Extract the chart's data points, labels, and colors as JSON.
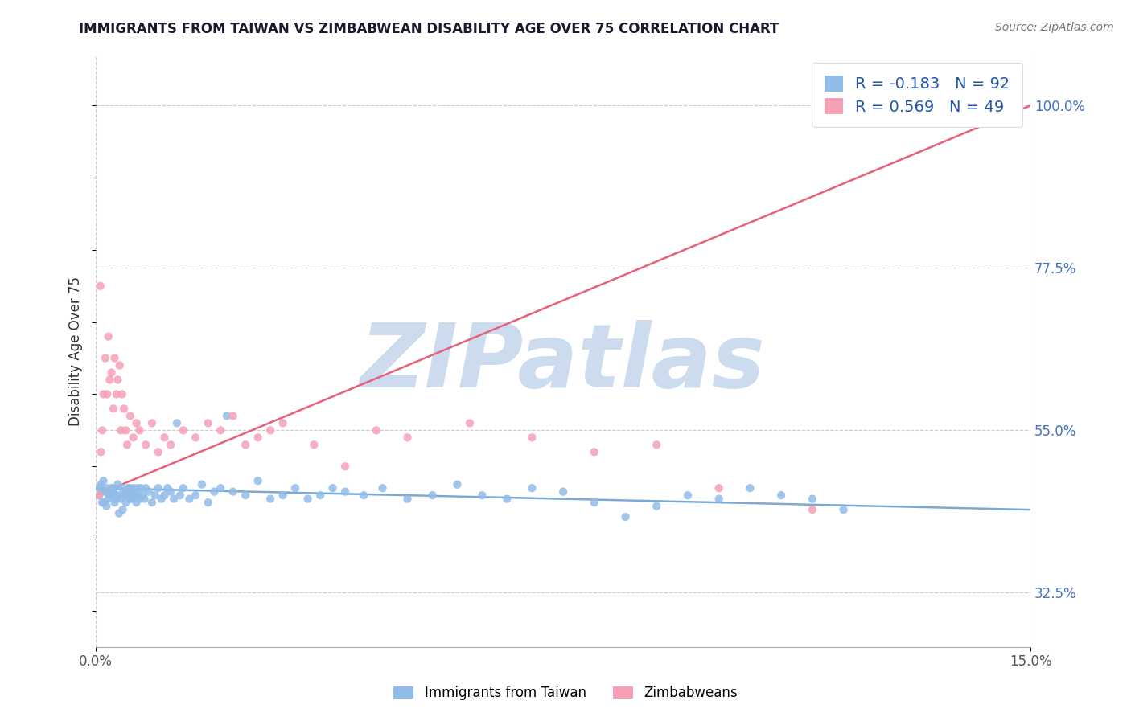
{
  "title": "IMMIGRANTS FROM TAIWAN VS ZIMBABWEAN DISABILITY AGE OVER 75 CORRELATION CHART",
  "source": "Source: ZipAtlas.com",
  "ylabel": "Disability Age Over 75",
  "xlim": [
    0.0,
    15.0
  ],
  "ylim": [
    25.0,
    107.0
  ],
  "x_tick_labels": [
    "0.0%",
    "15.0%"
  ],
  "x_tick_vals": [
    0.0,
    15.0
  ],
  "y_tick_labels_right": [
    "32.5%",
    "55.0%",
    "77.5%",
    "100.0%"
  ],
  "y_tick_vals_right": [
    32.5,
    55.0,
    77.5,
    100.0
  ],
  "legend_labels": [
    "Immigrants from Taiwan",
    "Zimbabweans"
  ],
  "legend_R": [
    -0.183,
    0.569
  ],
  "legend_N": [
    92,
    49
  ],
  "blue_color": "#92bce8",
  "pink_color": "#f5a0b5",
  "blue_line_color": "#7aaad4",
  "pink_line_color": "#e8607a",
  "title_color": "#1a1a2e",
  "watermark_text": "ZIPatlas",
  "watermark_color": "#ccdcee",
  "background_color": "#ffffff",
  "grid_color": "#cccccc",
  "right_axis_color": "#4472c4",
  "taiwan_x": [
    0.05,
    0.08,
    0.1,
    0.12,
    0.15,
    0.18,
    0.2,
    0.22,
    0.25,
    0.28,
    0.3,
    0.32,
    0.35,
    0.38,
    0.4,
    0.42,
    0.45,
    0.48,
    0.5,
    0.52,
    0.55,
    0.58,
    0.6,
    0.62,
    0.65,
    0.68,
    0.7,
    0.72,
    0.75,
    0.78,
    0.8,
    0.85,
    0.9,
    0.95,
    1.0,
    1.05,
    1.1,
    1.15,
    1.2,
    1.25,
    1.3,
    1.35,
    1.4,
    1.5,
    1.6,
    1.7,
    1.8,
    1.9,
    2.0,
    2.1,
    2.2,
    2.4,
    2.6,
    2.8,
    3.0,
    3.2,
    3.4,
    3.6,
    3.8,
    4.0,
    4.3,
    4.6,
    5.0,
    5.4,
    5.8,
    6.2,
    6.6,
    7.0,
    7.5,
    8.0,
    8.5,
    9.0,
    9.5,
    10.0,
    10.5,
    11.0,
    11.5,
    12.0,
    0.06,
    0.09,
    0.13,
    0.17,
    0.23,
    0.27,
    0.33,
    0.37,
    0.43,
    0.47,
    0.53,
    0.57,
    0.63,
    0.67
  ],
  "taiwan_y": [
    46.0,
    47.5,
    45.0,
    48.0,
    46.5,
    47.0,
    45.5,
    46.0,
    47.0,
    46.5,
    45.0,
    46.0,
    47.5,
    46.0,
    45.5,
    47.0,
    46.0,
    45.0,
    46.5,
    47.0,
    45.5,
    46.0,
    47.0,
    46.5,
    45.0,
    46.0,
    45.5,
    47.0,
    46.0,
    45.5,
    47.0,
    46.5,
    45.0,
    46.0,
    47.0,
    45.5,
    46.0,
    47.0,
    46.5,
    45.5,
    56.0,
    46.0,
    47.0,
    45.5,
    46.0,
    47.5,
    45.0,
    46.5,
    47.0,
    57.0,
    46.5,
    46.0,
    48.0,
    45.5,
    46.0,
    47.0,
    45.5,
    46.0,
    47.0,
    46.5,
    46.0,
    47.0,
    45.5,
    46.0,
    47.5,
    46.0,
    45.5,
    47.0,
    46.5,
    45.0,
    43.0,
    44.5,
    46.0,
    45.5,
    47.0,
    46.0,
    45.5,
    44.0,
    47.0,
    46.5,
    45.0,
    44.5,
    46.0,
    47.0,
    45.5,
    43.5,
    44.0,
    46.0,
    47.0,
    45.5,
    46.0,
    47.0
  ],
  "zimbabwe_x": [
    0.05,
    0.08,
    0.1,
    0.12,
    0.15,
    0.18,
    0.2,
    0.22,
    0.25,
    0.28,
    0.3,
    0.33,
    0.35,
    0.38,
    0.4,
    0.42,
    0.45,
    0.48,
    0.5,
    0.55,
    0.6,
    0.65,
    0.7,
    0.8,
    0.9,
    1.0,
    1.1,
    1.2,
    1.4,
    1.6,
    1.8,
    2.0,
    2.2,
    2.4,
    2.6,
    2.8,
    3.0,
    3.5,
    4.0,
    4.5,
    5.0,
    6.0,
    7.0,
    8.0,
    9.0,
    10.0,
    11.5,
    14.5,
    0.07
  ],
  "zimbabwe_y": [
    46.0,
    52.0,
    55.0,
    60.0,
    65.0,
    60.0,
    68.0,
    62.0,
    63.0,
    58.0,
    65.0,
    60.0,
    62.0,
    64.0,
    55.0,
    60.0,
    58.0,
    55.0,
    53.0,
    57.0,
    54.0,
    56.0,
    55.0,
    53.0,
    56.0,
    52.0,
    54.0,
    53.0,
    55.0,
    54.0,
    56.0,
    55.0,
    57.0,
    53.0,
    54.0,
    55.0,
    56.0,
    53.0,
    50.0,
    55.0,
    54.0,
    56.0,
    54.0,
    52.0,
    53.0,
    47.0,
    44.0,
    99.0,
    75.0
  ]
}
